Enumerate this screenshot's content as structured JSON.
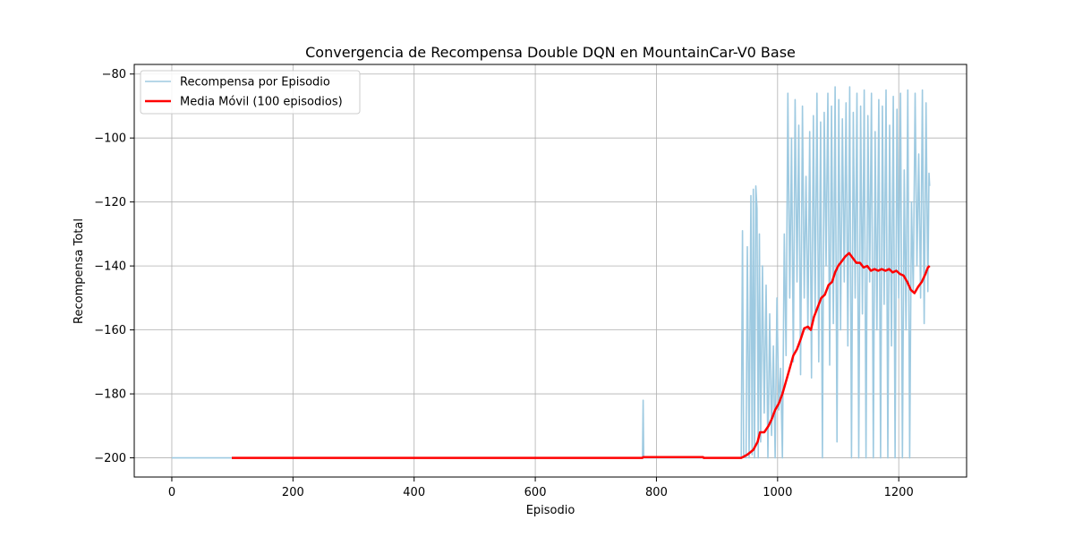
{
  "chart_data": {
    "type": "line",
    "title": "Convergencia de Recompensa Double DQN en MountainCar-V0 Base",
    "xlabel": "Episodio",
    "ylabel": "Recompensa Total",
    "xlim": [
      -62,
      1312
    ],
    "ylim": [
      -206,
      -77
    ],
    "xticks": [
      0,
      200,
      400,
      600,
      800,
      1000,
      1200
    ],
    "yticks": [
      -80,
      -100,
      -120,
      -140,
      -160,
      -180,
      -200
    ],
    "xtick_labels": [
      "0",
      "200",
      "400",
      "600",
      "800",
      "1000",
      "1200"
    ],
    "ytick_labels": [
      "−80",
      "−100",
      "−120",
      "−140",
      "−160",
      "−180",
      "−200"
    ],
    "grid": true,
    "legend_position": "upper-left",
    "series": [
      {
        "name": "Recompensa por Episodio",
        "color": "#9ecae1",
        "style": "raw-noisy",
        "points": [
          [
            0,
            -200
          ],
          [
            777,
            -200
          ],
          [
            778,
            -182
          ],
          [
            779,
            -200
          ],
          [
            940,
            -200
          ],
          [
            942,
            -129
          ],
          [
            944,
            -199
          ],
          [
            948,
            -200
          ],
          [
            950,
            -134
          ],
          [
            953,
            -200
          ],
          [
            956,
            -118
          ],
          [
            958,
            -199
          ],
          [
            960,
            -116
          ],
          [
            962,
            -200
          ],
          [
            964,
            -115
          ],
          [
            966,
            -122
          ],
          [
            968,
            -200
          ],
          [
            970,
            -130
          ],
          [
            972,
            -195
          ],
          [
            975,
            -140
          ],
          [
            978,
            -186
          ],
          [
            981,
            -146
          ],
          [
            984,
            -200
          ],
          [
            987,
            -155
          ],
          [
            990,
            -193
          ],
          [
            993,
            -165
          ],
          [
            996,
            -200
          ],
          [
            999,
            -150
          ],
          [
            1002,
            -185
          ],
          [
            1005,
            -172
          ],
          [
            1008,
            -200
          ],
          [
            1011,
            -130
          ],
          [
            1014,
            -168
          ],
          [
            1017,
            -86
          ],
          [
            1020,
            -150
          ],
          [
            1023,
            -100
          ],
          [
            1026,
            -170
          ],
          [
            1029,
            -88
          ],
          [
            1032,
            -145
          ],
          [
            1035,
            -96
          ],
          [
            1038,
            -174
          ],
          [
            1041,
            -90
          ],
          [
            1044,
            -150
          ],
          [
            1047,
            -112
          ],
          [
            1050,
            -160
          ],
          [
            1053,
            -98
          ],
          [
            1056,
            -175
          ],
          [
            1059,
            -93
          ],
          [
            1062,
            -154
          ],
          [
            1065,
            -86
          ],
          [
            1068,
            -170
          ],
          [
            1071,
            -95
          ],
          [
            1074,
            -200
          ],
          [
            1077,
            -92
          ],
          [
            1080,
            -140
          ],
          [
            1083,
            -86
          ],
          [
            1086,
            -171
          ],
          [
            1089,
            -90
          ],
          [
            1092,
            -158
          ],
          [
            1095,
            -84
          ],
          [
            1098,
            -195
          ],
          [
            1101,
            -88
          ],
          [
            1104,
            -160
          ],
          [
            1107,
            -94
          ],
          [
            1110,
            -145
          ],
          [
            1113,
            -89
          ],
          [
            1116,
            -165
          ],
          [
            1119,
            -84
          ],
          [
            1122,
            -200
          ],
          [
            1125,
            -92
          ],
          [
            1128,
            -150
          ],
          [
            1131,
            -86
          ],
          [
            1134,
            -200
          ],
          [
            1137,
            -90
          ],
          [
            1140,
            -155
          ],
          [
            1143,
            -85
          ],
          [
            1146,
            -200
          ],
          [
            1149,
            -93
          ],
          [
            1152,
            -145
          ],
          [
            1155,
            -86
          ],
          [
            1158,
            -200
          ],
          [
            1161,
            -98
          ],
          [
            1164,
            -160
          ],
          [
            1167,
            -88
          ],
          [
            1170,
            -200
          ],
          [
            1173,
            -90
          ],
          [
            1176,
            -152
          ],
          [
            1179,
            -85
          ],
          [
            1182,
            -200
          ],
          [
            1185,
            -96
          ],
          [
            1188,
            -165
          ],
          [
            1191,
            -87
          ],
          [
            1194,
            -200
          ],
          [
            1197,
            -91
          ],
          [
            1200,
            -150
          ],
          [
            1203,
            -86
          ],
          [
            1206,
            -200
          ],
          [
            1209,
            -110
          ],
          [
            1212,
            -160
          ],
          [
            1215,
            -85
          ],
          [
            1218,
            -200
          ],
          [
            1221,
            -120
          ],
          [
            1224,
            -148
          ],
          [
            1227,
            -86
          ],
          [
            1230,
            -140
          ],
          [
            1233,
            -105
          ],
          [
            1236,
            -150
          ],
          [
            1239,
            -85
          ],
          [
            1242,
            -158
          ],
          [
            1245,
            -89
          ],
          [
            1248,
            -148
          ],
          [
            1250,
            -111
          ],
          [
            1251,
            -115
          ]
        ]
      },
      {
        "name": "Media Móvil (100 episodios)",
        "color": "#ff0000",
        "style": "solid-thick",
        "points": [
          [
            99,
            -200
          ],
          [
            777,
            -200
          ],
          [
            778,
            -199.8
          ],
          [
            877,
            -199.8
          ],
          [
            878,
            -200
          ],
          [
            940,
            -200
          ],
          [
            950,
            -199
          ],
          [
            960,
            -197.5
          ],
          [
            967,
            -195
          ],
          [
            971,
            -192
          ],
          [
            978,
            -192
          ],
          [
            985,
            -190
          ],
          [
            990,
            -188
          ],
          [
            996,
            -185
          ],
          [
            1002,
            -183
          ],
          [
            1008,
            -180
          ],
          [
            1014,
            -176
          ],
          [
            1020,
            -172
          ],
          [
            1026,
            -168
          ],
          [
            1032,
            -166
          ],
          [
            1038,
            -163
          ],
          [
            1044,
            -159.5
          ],
          [
            1050,
            -159
          ],
          [
            1055,
            -160
          ],
          [
            1060,
            -156
          ],
          [
            1066,
            -153
          ],
          [
            1072,
            -150
          ],
          [
            1078,
            -149
          ],
          [
            1084,
            -146
          ],
          [
            1090,
            -145
          ],
          [
            1095,
            -142
          ],
          [
            1100,
            -140
          ],
          [
            1106,
            -138.5
          ],
          [
            1112,
            -137
          ],
          [
            1118,
            -136
          ],
          [
            1124,
            -137.5
          ],
          [
            1130,
            -139
          ],
          [
            1136,
            -139
          ],
          [
            1142,
            -140.5
          ],
          [
            1148,
            -140
          ],
          [
            1154,
            -141.5
          ],
          [
            1160,
            -141
          ],
          [
            1166,
            -141.5
          ],
          [
            1172,
            -141
          ],
          [
            1178,
            -141.5
          ],
          [
            1184,
            -141
          ],
          [
            1190,
            -142
          ],
          [
            1196,
            -141.5
          ],
          [
            1202,
            -142.5
          ],
          [
            1208,
            -143
          ],
          [
            1214,
            -145
          ],
          [
            1220,
            -147.5
          ],
          [
            1226,
            -148.5
          ],
          [
            1232,
            -146.5
          ],
          [
            1238,
            -145
          ],
          [
            1244,
            -142.5
          ],
          [
            1248,
            -140.5
          ],
          [
            1251,
            -140
          ]
        ]
      }
    ]
  }
}
